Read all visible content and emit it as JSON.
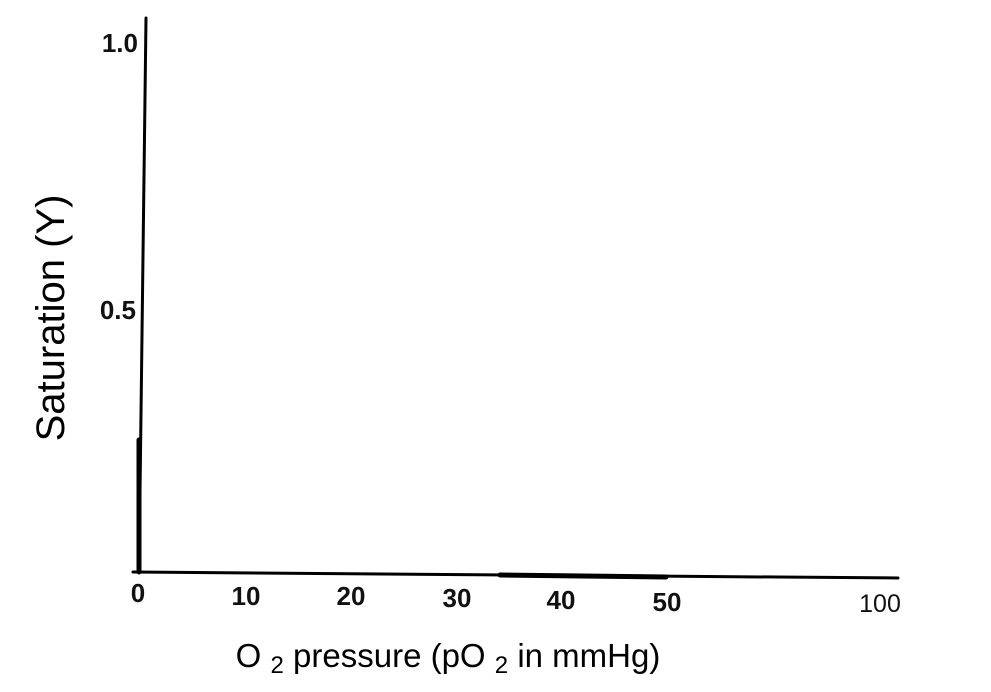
{
  "chart_data": {
    "type": "line",
    "title": "",
    "xlabel": {
      "parts": [
        {
          "text": "O",
          "sub": false
        },
        {
          "text": "2",
          "sub": true
        },
        {
          "text": " pressure (pO",
          "sub": false
        },
        {
          "text": "2",
          "sub": true
        },
        {
          "text": " in mmHg)",
          "sub": false
        }
      ]
    },
    "ylabel": "Saturation (Y)",
    "x_ticks": [
      "0",
      "10",
      "20",
      "30",
      "40",
      "50",
      "100"
    ],
    "y_ticks": [
      "0.5",
      "1.0"
    ],
    "xlim": [
      0,
      100
    ],
    "ylim": [
      0,
      1.0
    ],
    "series": [],
    "grid": false,
    "legend": "none"
  }
}
